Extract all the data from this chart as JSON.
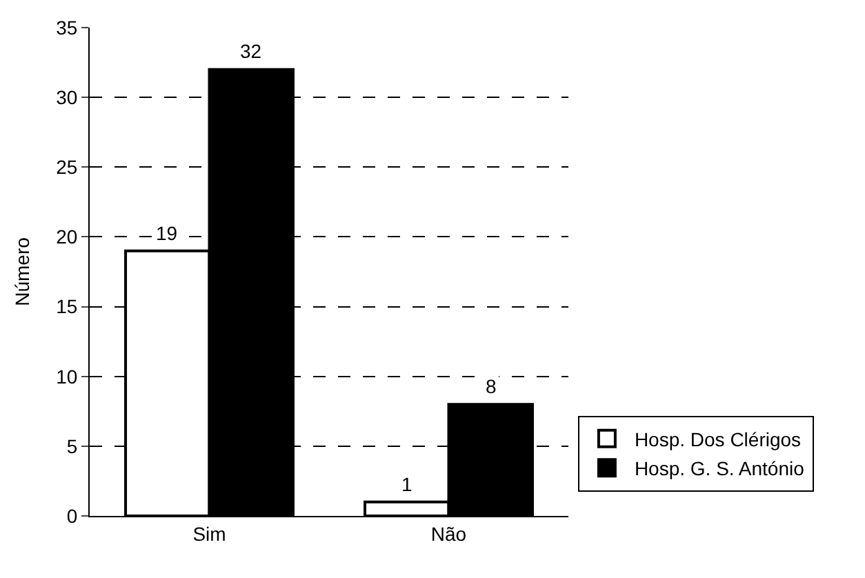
{
  "chart_data": {
    "type": "bar",
    "ylabel": "Número",
    "categories": [
      "Sim",
      "Não"
    ],
    "series": [
      {
        "name": "Hosp. Dos Clérigos",
        "color": "#ffffff",
        "values": [
          19,
          1
        ]
      },
      {
        "name": "Hosp. G. S. António",
        "color": "#000000",
        "values": [
          32,
          8
        ]
      }
    ],
    "ylim": [
      0,
      35
    ],
    "yticks": [
      0,
      5,
      10,
      15,
      20,
      25,
      30,
      35
    ],
    "grid": "y",
    "legend": "right",
    "data_labels": true
  }
}
